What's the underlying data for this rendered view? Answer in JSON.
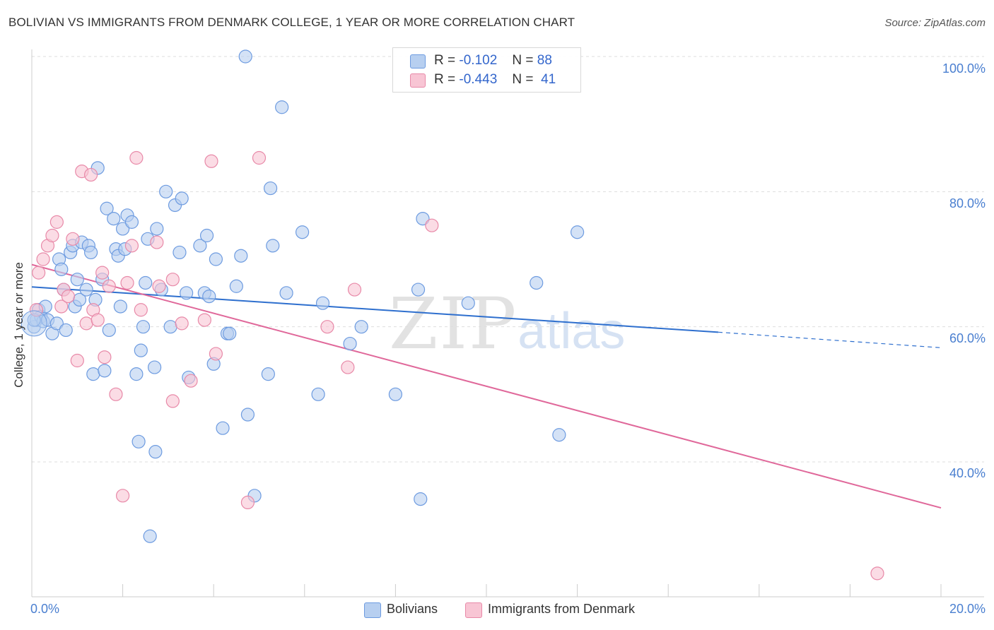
{
  "title": "BOLIVIAN VS IMMIGRANTS FROM DENMARK COLLEGE, 1 YEAR OR MORE CORRELATION CHART",
  "source": "Source: ZipAtlas.com",
  "watermark": {
    "main": "ZIP",
    "sub": "atlas"
  },
  "colors": {
    "blue_fill": "#b7cff0",
    "blue_stroke": "#6d9be0",
    "blue_line": "#2e6fce",
    "pink_fill": "#f8c5d4",
    "pink_stroke": "#e889a8",
    "pink_line": "#e0689a",
    "grid": "#dddddd",
    "axis_text": "#4a7fd0"
  },
  "legend": {
    "rows": [
      {
        "r_label": "R =",
        "r_value": "-0.102",
        "n_label": "N =",
        "n_value": "88"
      },
      {
        "r_label": "R =",
        "r_value": "-0.443",
        "n_label": "N =",
        "n_value": "41"
      }
    ]
  },
  "bottom_legend": {
    "series1": "Bolivians",
    "series2": "Immigrants from Denmark"
  },
  "chart_data": {
    "type": "scatter",
    "title": "BOLIVIAN VS IMMIGRANTS FROM DENMARK COLLEGE, 1 YEAR OR MORE CORRELATION CHART",
    "xlabel": "",
    "ylabel": "College, 1 year or more",
    "xlim": [
      0,
      20
    ],
    "ylim": [
      21,
      103
    ],
    "x_tick_labels": [
      "0.0%",
      "20.0%"
    ],
    "y_tick_labels": [
      "100.0%",
      "80.0%",
      "60.0%",
      "40.0%"
    ],
    "y_ticks": [
      100,
      80,
      60,
      40
    ],
    "series": [
      {
        "name": "Bolivians",
        "R": -0.102,
        "N": 88,
        "trend": {
          "x0": 0,
          "y0": 65.9,
          "x1": 15.1,
          "y1": 59.2,
          "dash_to_x": 20,
          "dash_to_y": 56.9
        },
        "points": [
          [
            0.05,
            60.0
          ],
          [
            0.1,
            61.0
          ],
          [
            0.15,
            62.5
          ],
          [
            0.2,
            61.5
          ],
          [
            0.25,
            60.8
          ],
          [
            0.3,
            63.0
          ],
          [
            0.35,
            61.0
          ],
          [
            0.45,
            59.0
          ],
          [
            0.55,
            60.5
          ],
          [
            0.6,
            70.0
          ],
          [
            0.65,
            68.5
          ],
          [
            0.7,
            65.5
          ],
          [
            0.75,
            59.5
          ],
          [
            0.85,
            71.0
          ],
          [
            0.9,
            72.0
          ],
          [
            0.95,
            63.0
          ],
          [
            1.0,
            67.0
          ],
          [
            1.05,
            64.0
          ],
          [
            1.1,
            72.5
          ],
          [
            1.2,
            65.5
          ],
          [
            1.25,
            72.0
          ],
          [
            1.3,
            71.0
          ],
          [
            1.35,
            53.0
          ],
          [
            1.4,
            64.0
          ],
          [
            1.45,
            83.5
          ],
          [
            1.55,
            67.0
          ],
          [
            1.6,
            53.5
          ],
          [
            1.65,
            77.5
          ],
          [
            1.7,
            59.5
          ],
          [
            1.8,
            76.0
          ],
          [
            1.85,
            71.5
          ],
          [
            1.9,
            70.5
          ],
          [
            1.95,
            63.0
          ],
          [
            2.0,
            74.5
          ],
          [
            2.05,
            71.5
          ],
          [
            2.1,
            76.5
          ],
          [
            2.2,
            75.5
          ],
          [
            2.3,
            53.0
          ],
          [
            2.35,
            43.0
          ],
          [
            2.4,
            56.5
          ],
          [
            2.45,
            60.0
          ],
          [
            2.5,
            66.5
          ],
          [
            2.55,
            73.0
          ],
          [
            2.6,
            29.0
          ],
          [
            2.7,
            54.0
          ],
          [
            2.72,
            41.5
          ],
          [
            2.75,
            74.5
          ],
          [
            2.85,
            65.5
          ],
          [
            2.95,
            80.0
          ],
          [
            3.05,
            60.0
          ],
          [
            3.15,
            78.0
          ],
          [
            3.25,
            71.0
          ],
          [
            3.3,
            79.0
          ],
          [
            3.4,
            65.0
          ],
          [
            3.45,
            52.5
          ],
          [
            3.7,
            72.0
          ],
          [
            3.8,
            65.0
          ],
          [
            3.85,
            73.5
          ],
          [
            3.9,
            64.5
          ],
          [
            4.0,
            54.5
          ],
          [
            4.05,
            70.0
          ],
          [
            4.2,
            45.0
          ],
          [
            4.3,
            59.0
          ],
          [
            4.35,
            59.0
          ],
          [
            4.5,
            66.0
          ],
          [
            4.6,
            70.5
          ],
          [
            4.7,
            100.0
          ],
          [
            4.75,
            47.0
          ],
          [
            4.9,
            35.0
          ],
          [
            5.2,
            53.0
          ],
          [
            5.25,
            80.5
          ],
          [
            5.3,
            72.0
          ],
          [
            5.5,
            92.5
          ],
          [
            5.6,
            65.0
          ],
          [
            5.95,
            74.0
          ],
          [
            6.3,
            50.0
          ],
          [
            6.4,
            63.5
          ],
          [
            7.0,
            57.5
          ],
          [
            7.25,
            60.0
          ],
          [
            8.0,
            50.0
          ],
          [
            8.5,
            65.5
          ],
          [
            8.55,
            34.5
          ],
          [
            8.6,
            76.0
          ],
          [
            9.6,
            63.5
          ],
          [
            11.1,
            66.5
          ],
          [
            11.6,
            44.0
          ],
          [
            12.0,
            74.0
          ],
          [
            0.05,
            61.0
          ]
        ]
      },
      {
        "name": "Immigrants from Denmark",
        "R": -0.443,
        "N": 41,
        "trend": {
          "x0": 0,
          "y0": 69.2,
          "x1": 20,
          "y1": 33.2
        },
        "points": [
          [
            0.1,
            62.5
          ],
          [
            0.15,
            68.0
          ],
          [
            0.25,
            70.0
          ],
          [
            0.35,
            72.0
          ],
          [
            0.45,
            73.5
          ],
          [
            0.55,
            75.5
          ],
          [
            0.65,
            63.0
          ],
          [
            0.7,
            65.5
          ],
          [
            0.8,
            64.5
          ],
          [
            0.9,
            73.0
          ],
          [
            1.0,
            55.0
          ],
          [
            1.1,
            83.0
          ],
          [
            1.2,
            60.5
          ],
          [
            1.3,
            82.5
          ],
          [
            1.35,
            62.5
          ],
          [
            1.45,
            61.0
          ],
          [
            1.55,
            68.0
          ],
          [
            1.6,
            55.5
          ],
          [
            1.7,
            66.0
          ],
          [
            1.85,
            50.0
          ],
          [
            2.0,
            35.0
          ],
          [
            2.1,
            66.5
          ],
          [
            2.2,
            72.0
          ],
          [
            2.3,
            85.0
          ],
          [
            2.4,
            62.5
          ],
          [
            2.75,
            72.5
          ],
          [
            2.8,
            66.0
          ],
          [
            3.1,
            49.0
          ],
          [
            3.1,
            67.0
          ],
          [
            3.3,
            60.5
          ],
          [
            3.5,
            52.0
          ],
          [
            3.8,
            61.0
          ],
          [
            3.95,
            84.5
          ],
          [
            4.05,
            56.0
          ],
          [
            4.75,
            34.0
          ],
          [
            5.0,
            85.0
          ],
          [
            6.5,
            60.0
          ],
          [
            6.95,
            54.0
          ],
          [
            7.1,
            65.5
          ],
          [
            8.8,
            75.0
          ],
          [
            18.6,
            23.5
          ]
        ]
      }
    ]
  }
}
